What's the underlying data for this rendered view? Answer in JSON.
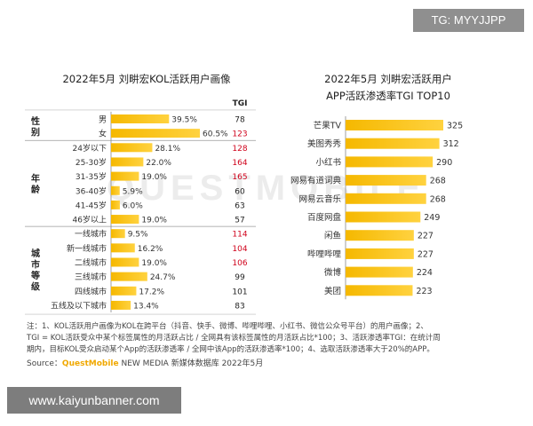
{
  "watermark_tag": "TG: MYYJJPP",
  "watermark_url": "www.kaiyunbanner.com",
  "background_mark": "QUESTMOBILE",
  "colors": {
    "bar": "#f5b800",
    "tgi_high": "#d0021b",
    "tgi_normal": "#222222"
  },
  "chart_data": [
    {
      "type": "bar",
      "orientation": "horizontal",
      "title": "2022年5月 刘畊宏KOL活跃用户画像",
      "column_header": "TGI",
      "groups": [
        {
          "name": "性别",
          "categories": [
            "男",
            "女"
          ]
        },
        {
          "name": "年龄",
          "categories": [
            "24岁以下",
            "25-30岁",
            "31-35岁",
            "36-40岁",
            "41-45岁",
            "46岁以上"
          ]
        },
        {
          "name": "城市等级",
          "categories": [
            "一线城市",
            "新一线城市",
            "二线城市",
            "三线城市",
            "四线城市",
            "五线及以下城市"
          ]
        }
      ],
      "categories": [
        "男",
        "女",
        "24岁以下",
        "25-30岁",
        "31-35岁",
        "36-40岁",
        "41-45岁",
        "46岁以上",
        "一线城市",
        "新一线城市",
        "二线城市",
        "三线城市",
        "四线城市",
        "五线及以下城市"
      ],
      "values": [
        39.5,
        60.5,
        28.1,
        22.0,
        19.0,
        5.9,
        6.0,
        19.0,
        9.5,
        16.2,
        19.0,
        24.7,
        17.2,
        13.4
      ],
      "value_labels": [
        "39.5%",
        "60.5%",
        "28.1%",
        "22.0%",
        "19.0%",
        "5.9%",
        "6.0%",
        "19.0%",
        "9.5%",
        "16.2%",
        "19.0%",
        "24.7%",
        "17.2%",
        "13.4%"
      ],
      "tgi": [
        78,
        123,
        128,
        164,
        165,
        60,
        63,
        57,
        114,
        104,
        106,
        99,
        101,
        83
      ],
      "tgi_highlight": [
        false,
        true,
        true,
        true,
        true,
        false,
        false,
        false,
        true,
        true,
        true,
        false,
        false,
        false
      ]
    },
    {
      "type": "bar",
      "orientation": "horizontal",
      "title_lines": [
        "2022年5月 刘畊宏活跃用户",
        "APP活跃渗透率TGI TOP10"
      ],
      "categories": [
        "芒果TV",
        "美图秀秀",
        "小红书",
        "网易有道词典",
        "网易云音乐",
        "百度网盘",
        "闲鱼",
        "哔哩哔哩",
        "微博",
        "美团"
      ],
      "values": [
        325,
        312,
        290,
        268,
        268,
        249,
        227,
        227,
        224,
        223
      ]
    }
  ],
  "notes": [
    "注：1、KOL活跃用户画像为KOL在跨平台（抖音、快手、微博、哔哩哔哩、小红书、微信公众号平台）的用户画像；2、",
    "TGI = KOL活跃受众中某个标签属性的月活跃占比 / 全网具有该标签属性的月活跃占比*100；3、活跃渗透率TGI：在统计周",
    "期内，目标KOL受众启动某个App的活跃渗透率 / 全网中该App的活跃渗透率*100；4、选取活跃渗透率大于20%的APP。"
  ],
  "source": {
    "label": "Source：",
    "brand": "QuestMobile",
    "rest": " NEW MEDIA 新媒体数据库 2022年5月"
  }
}
